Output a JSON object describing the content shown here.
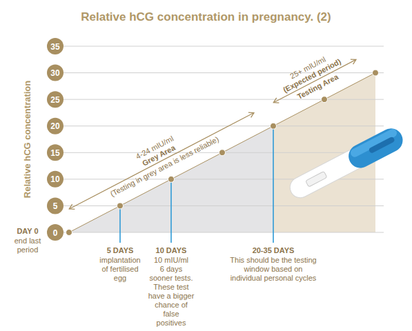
{
  "chart_data": {
    "type": "line",
    "title": "Relative hCG concentration in pregnancy. (2)",
    "y_label": "Relative hCG concentration",
    "categories": [
      "DAY 0",
      "5 DAYS",
      "10 DAYS",
      null,
      "20-35 DAYS",
      null,
      null
    ],
    "descriptions": [
      [
        "end last period"
      ],
      [
        "implantation of fertilised egg"
      ],
      [
        "10 mIU/ml",
        "6 days sooner tests. These test have a bigger chance of false positives"
      ],
      null,
      [
        "This should be the testing window based on individual personal cycles"
      ],
      null,
      null
    ],
    "values": [
      0,
      5,
      10,
      15,
      20,
      25,
      30
    ],
    "color": "#a88f60",
    "marker": "circle",
    "ylim": [
      0,
      35
    ],
    "yticks": [
      0,
      5,
      10,
      15,
      20,
      25,
      30,
      35
    ],
    "grid": true,
    "bands": [
      {
        "from": 0,
        "to": 20,
        "color": "#e4e4e6",
        "label": [
          "4-24 mIU/ml",
          "Grey Area",
          "(Testing in grey area is less reliable)"
        ]
      },
      {
        "from": 20,
        "to": 30,
        "color": "#ebe2d2",
        "label": [
          "25+ mIU/ml",
          "(Expected period)",
          "Testing Area"
        ]
      }
    ]
  }
}
